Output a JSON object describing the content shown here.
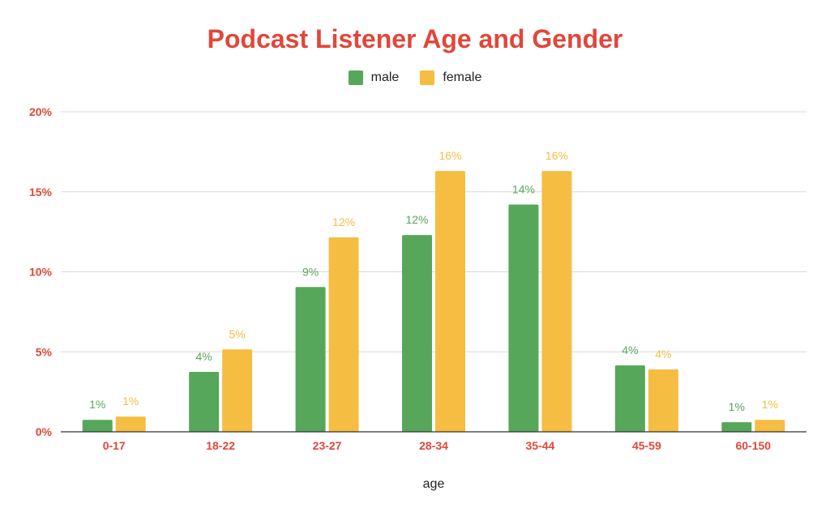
{
  "chart_data": {
    "type": "bar",
    "title": "Podcast Listener Age and Gender",
    "xlabel": "age",
    "ylabel": "",
    "categories": [
      "0-17",
      "18-22",
      "23-27",
      "28-34",
      "35-44",
      "45-59",
      "60-150"
    ],
    "series": [
      {
        "name": "male",
        "color": "#57a75b",
        "values": [
          0.75,
          3.75,
          9.05,
          12.3,
          14.2,
          4.15,
          0.6
        ],
        "labels": [
          "1%",
          "4%",
          "9%",
          "12%",
          "14%",
          "4%",
          "1%"
        ]
      },
      {
        "name": "female",
        "color": "#f5bd42",
        "values": [
          0.95,
          5.15,
          12.15,
          16.3,
          16.3,
          3.9,
          0.75
        ],
        "labels": [
          "1%",
          "5%",
          "12%",
          "16%",
          "16%",
          "4%",
          "1%"
        ]
      }
    ],
    "ylim": [
      0,
      20
    ],
    "yticks": [
      0,
      5,
      10,
      15,
      20
    ],
    "ytick_labels": [
      "0%",
      "5%",
      "10%",
      "15%",
      "20%"
    ],
    "grid": true,
    "legend_position": "top"
  },
  "colors": {
    "title": "#e0473a",
    "tick_labels": "#e0473a",
    "gridline": "#d9d9d9",
    "axis": "#333333"
  }
}
